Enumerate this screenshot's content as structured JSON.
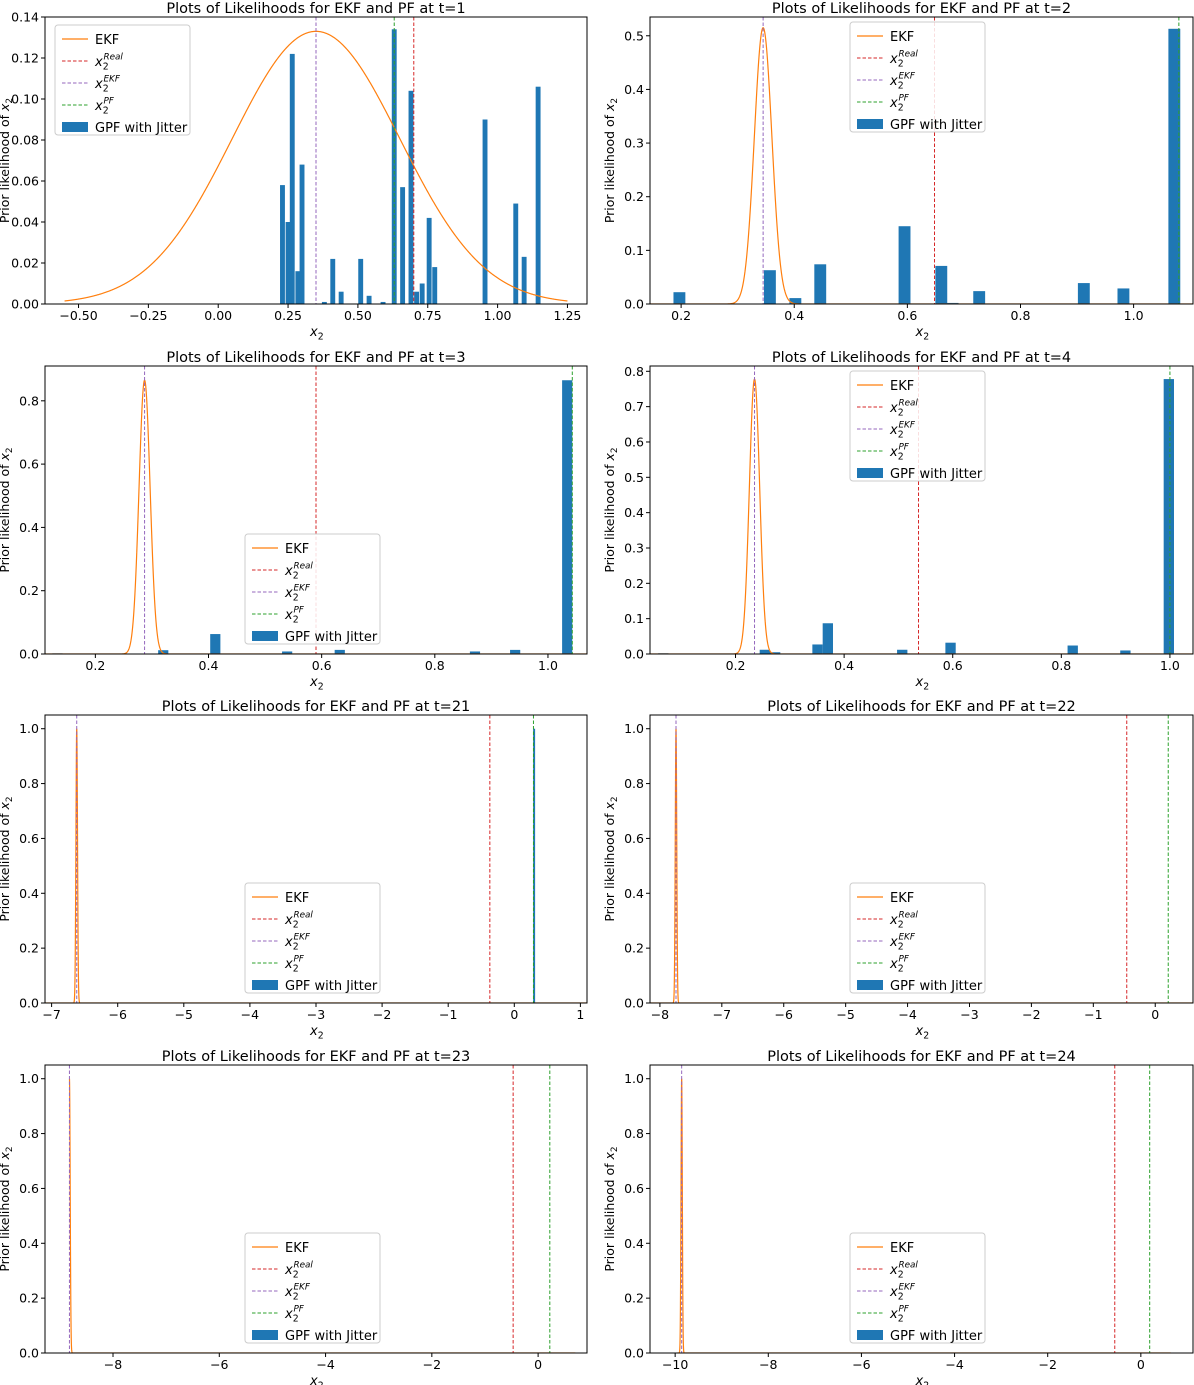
{
  "chart_data": [
    {
      "type": "line",
      "title": "Plots of Likelihoods for EKF and PF at t=1",
      "xlabel": "x2",
      "ylabel": "Prior likelihood of x2",
      "xlim": [
        -0.62,
        1.32
      ],
      "ylim": [
        0,
        0.14
      ],
      "xticks": [
        -0.5,
        -0.25,
        0.0,
        0.25,
        0.5,
        0.75,
        1.0,
        1.25
      ],
      "xtick_labels": [
        "−0.50",
        "−0.25",
        "0.00",
        "0.25",
        "0.50",
        "0.75",
        "1.00",
        "1.25"
      ],
      "yticks": [
        0,
        0.02,
        0.04,
        0.06,
        0.08,
        0.1,
        0.12,
        0.14
      ],
      "ytick_labels": [
        "0.00",
        "0.02",
        "0.04",
        "0.06",
        "0.08",
        "0.10",
        "0.12",
        "0.14"
      ],
      "legend_position": "top-left",
      "ekf": {
        "mean": 0.35,
        "sd": 0.3,
        "peak": 0.133,
        "x_range": [
          -0.55,
          1.25
        ]
      },
      "x_real": 0.7,
      "x_ekf": 0.35,
      "x_pf": 0.63,
      "hist_bin_width": 0.0175,
      "hist": [
        [
          0.23,
          0.058
        ],
        [
          0.25,
          0.04
        ],
        [
          0.265,
          0.122
        ],
        [
          0.285,
          0.016
        ],
        [
          0.3,
          0.068
        ],
        [
          0.38,
          0.001
        ],
        [
          0.41,
          0.022
        ],
        [
          0.44,
          0.006
        ],
        [
          0.51,
          0.022
        ],
        [
          0.54,
          0.004
        ],
        [
          0.59,
          0.001
        ],
        [
          0.63,
          0.134
        ],
        [
          0.66,
          0.057
        ],
        [
          0.69,
          0.104
        ],
        [
          0.71,
          0.006
        ],
        [
          0.73,
          0.01
        ],
        [
          0.755,
          0.042
        ],
        [
          0.775,
          0.018
        ],
        [
          0.955,
          0.09
        ],
        [
          1.065,
          0.049
        ],
        [
          1.095,
          0.023
        ],
        [
          1.145,
          0.106
        ]
      ]
    },
    {
      "type": "line",
      "title": "Plots of Likelihoods for EKF and PF at t=2",
      "xlabel": "x2",
      "ylabel": "Prior likelihood of x2",
      "xlim": [
        0.145,
        1.105
      ],
      "ylim": [
        0,
        0.535
      ],
      "xticks": [
        0.2,
        0.4,
        0.6,
        0.8,
        1.0
      ],
      "xtick_labels": [
        "0.2",
        "0.4",
        "0.6",
        "0.8",
        "1.0"
      ],
      "yticks": [
        0,
        0.1,
        0.2,
        0.3,
        0.4,
        0.5
      ],
      "ytick_labels": [
        "0.0",
        "0.1",
        "0.2",
        "0.3",
        "0.4",
        "0.5"
      ],
      "legend_position": "top-center",
      "ekf": {
        "mean": 0.345,
        "sd": 0.0155,
        "peak": 0.515,
        "x_range": [
          0.145,
          1.105
        ]
      },
      "x_real": 0.648,
      "x_ekf": 0.345,
      "x_pf": 1.08,
      "hist_bin_width": 0.021,
      "hist": [
        [
          0.197,
          0.022
        ],
        [
          0.357,
          0.063
        ],
        [
          0.402,
          0.011
        ],
        [
          0.446,
          0.074
        ],
        [
          0.595,
          0.145
        ],
        [
          0.66,
          0.071
        ],
        [
          0.68,
          0.002
        ],
        [
          0.727,
          0.024
        ],
        [
          0.912,
          0.039
        ],
        [
          0.982,
          0.029
        ],
        [
          1.072,
          0.513
        ]
      ]
    },
    {
      "type": "line",
      "title": "Plots of Likelihoods for EKF and PF at t=3",
      "xlabel": "x2",
      "ylabel": "Prior likelihood of x2",
      "xlim": [
        0.111,
        1.069
      ],
      "ylim": [
        0,
        0.91
      ],
      "xticks": [
        0.2,
        0.4,
        0.6,
        0.8,
        1.0
      ],
      "xtick_labels": [
        "0.2",
        "0.4",
        "0.6",
        "0.8",
        "1.0"
      ],
      "yticks": [
        0,
        0.2,
        0.4,
        0.6,
        0.8
      ],
      "ytick_labels": [
        "0.0",
        "0.2",
        "0.4",
        "0.6",
        "0.8"
      ],
      "legend_position": "center",
      "ekf": {
        "mean": 0.287,
        "sd": 0.0098,
        "peak": 0.865,
        "x_range": [
          0.111,
          1.069
        ]
      },
      "x_real": 0.59,
      "x_ekf": 0.287,
      "x_pf": 1.043,
      "hist_bin_width": 0.018,
      "hist": [
        [
          0.133,
          0.002
        ],
        [
          0.32,
          0.012
        ],
        [
          0.412,
          0.063
        ],
        [
          0.539,
          0.008
        ],
        [
          0.632,
          0.013
        ],
        [
          0.871,
          0.008
        ],
        [
          0.942,
          0.013
        ],
        [
          1.034,
          0.865
        ]
      ]
    },
    {
      "type": "line",
      "title": "Plots of Likelihoods for EKF and PF at t=4",
      "xlabel": "x2",
      "ylabel": "Prior likelihood of x2",
      "xlim": [
        0.0425,
        1.0425
      ],
      "ylim": [
        0,
        0.815
      ],
      "xticks": [
        0.2,
        0.4,
        0.6,
        0.8,
        1.0
      ],
      "xtick_labels": [
        "0.2",
        "0.4",
        "0.6",
        "0.8",
        "1.0"
      ],
      "yticks": [
        0,
        0.1,
        0.2,
        0.3,
        0.4,
        0.5,
        0.6,
        0.7,
        0.8
      ],
      "ytick_labels": [
        "0.0",
        "0.1",
        "0.2",
        "0.3",
        "0.4",
        "0.5",
        "0.6",
        "0.7",
        "0.8"
      ],
      "legend_position": "top-center",
      "ekf": {
        "mean": 0.235,
        "sd": 0.0095,
        "peak": 0.778,
        "x_range": [
          0.0425,
          1.0425
        ]
      },
      "x_real": 0.537,
      "x_ekf": 0.235,
      "x_pf": 1.0,
      "hist_bin_width": 0.019,
      "hist": [
        [
          0.067,
          0.002
        ],
        [
          0.254,
          0.012
        ],
        [
          0.273,
          0.005
        ],
        [
          0.351,
          0.027
        ],
        [
          0.37,
          0.087
        ],
        [
          0.507,
          0.012
        ],
        [
          0.596,
          0.032
        ],
        [
          0.821,
          0.024
        ],
        [
          0.918,
          0.01
        ],
        [
          0.998,
          0.778
        ]
      ]
    },
    {
      "type": "line",
      "title": "Plots of Likelihoods for EKF and PF at t=21",
      "xlabel": "x2",
      "ylabel": "Prior likelihood of x2",
      "xlim": [
        -7.1,
        1.1
      ],
      "ylim": [
        0,
        1.05
      ],
      "xticks": [
        -7,
        -6,
        -5,
        -4,
        -3,
        -2,
        -1,
        0,
        1
      ],
      "xtick_labels": [
        "−7",
        "−6",
        "−5",
        "−4",
        "−3",
        "−2",
        "−1",
        "0",
        "1"
      ],
      "yticks": [
        0,
        0.2,
        0.4,
        0.6,
        0.8,
        1.0
      ],
      "ytick_labels": [
        "0.0",
        "0.2",
        "0.4",
        "0.6",
        "0.8",
        "1.0"
      ],
      "legend_position": "center",
      "ekf": {
        "mean": -6.62,
        "sd": 0.012,
        "peak": 1.0,
        "x_range": [
          -7.1,
          1.1
        ]
      },
      "x_real": -0.37,
      "x_ekf": -6.62,
      "x_pf": 0.29,
      "hist_bin_width": 0.03,
      "hist": [
        [
          0.3,
          1.0
        ]
      ]
    },
    {
      "type": "line",
      "title": "Plots of Likelihoods for EKF and PF at t=22",
      "xlabel": "x2",
      "ylabel": "Prior likelihood of x2",
      "xlim": [
        -8.16,
        0.61
      ],
      "ylim": [
        0,
        1.05
      ],
      "xticks": [
        -8,
        -7,
        -6,
        -5,
        -4,
        -3,
        -2,
        -1,
        0
      ],
      "xtick_labels": [
        "−8",
        "−7",
        "−6",
        "−5",
        "−4",
        "−3",
        "−2",
        "−1",
        "0"
      ],
      "yticks": [
        0,
        0.2,
        0.4,
        0.6,
        0.8,
        1.0
      ],
      "ytick_labels": [
        "0.0",
        "0.2",
        "0.4",
        "0.6",
        "0.8",
        "1.0"
      ],
      "legend_position": "center",
      "ekf": {
        "mean": -7.74,
        "sd": 0.012,
        "peak": 1.0,
        "x_range": [
          -8.16,
          0.61
        ]
      },
      "x_real": -0.46,
      "x_ekf": -7.74,
      "x_pf": 0.21,
      "hist_bin_width": 0.03,
      "hist": []
    },
    {
      "type": "line",
      "title": "Plots of Likelihoods for EKF and PF at t=23",
      "xlabel": "x2",
      "ylabel": "Prior likelihood of x2",
      "xlim": [
        -9.28,
        0.92
      ],
      "ylim": [
        0,
        1.05
      ],
      "xticks": [
        -8,
        -6,
        -4,
        -2,
        0
      ],
      "xtick_labels": [
        "−8",
        "−6",
        "−4",
        "−2",
        "0"
      ],
      "yticks": [
        0,
        0.2,
        0.4,
        0.6,
        0.8,
        1.0
      ],
      "ytick_labels": [
        "0.0",
        "0.2",
        "0.4",
        "0.6",
        "0.8",
        "1.0"
      ],
      "legend_position": "center",
      "ekf": {
        "mean": -8.82,
        "sd": 0.014,
        "peak": 1.0,
        "x_range": [
          -8.82,
          0.7
        ]
      },
      "x_real": -0.47,
      "x_ekf": -8.82,
      "x_pf": 0.22,
      "hist_bin_width": 0.03,
      "hist": []
    },
    {
      "type": "line",
      "title": "Plots of Likelihoods for EKF and PF at t=24",
      "xlabel": "x2",
      "ylabel": "Prior likelihood of x2",
      "xlim": [
        -10.54,
        1.12
      ],
      "ylim": [
        0,
        1.05
      ],
      "xticks": [
        -10,
        -8,
        -6,
        -4,
        -2,
        0
      ],
      "xtick_labels": [
        "−10",
        "−8",
        "−6",
        "−4",
        "−2",
        "0"
      ],
      "yticks": [
        0,
        0.2,
        0.4,
        0.6,
        0.8,
        1.0
      ],
      "ytick_labels": [
        "0.0",
        "0.2",
        "0.4",
        "0.6",
        "0.8",
        "1.0"
      ],
      "legend_position": "center",
      "ekf": {
        "mean": -9.86,
        "sd": 0.014,
        "peak": 1.0,
        "x_range": [
          -9.95,
          0.65
        ]
      },
      "x_real": -0.56,
      "x_ekf": -9.86,
      "x_pf": 0.19,
      "hist_bin_width": 0.03,
      "hist": []
    }
  ],
  "legend_labels": {
    "ekf": "EKF",
    "real": "Real",
    "ekf_sup": "EKF",
    "pf": "PF",
    "hist": "GPF with Jitter",
    "var_base": "x",
    "var_sub": "2"
  },
  "colors": {
    "ekf": "#ff7f0e",
    "real": "#d62728",
    "ekf_line": "#9467bd",
    "pf": "#2ca02c",
    "hist": "#1f77b4",
    "axis": "#000000"
  }
}
